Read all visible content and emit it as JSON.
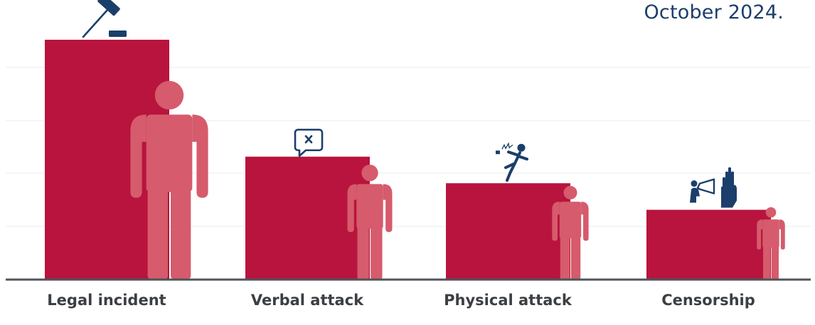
{
  "caption": "October 2024.",
  "colors": {
    "bar": "#b8143d",
    "figure": "#d65b6c",
    "icon": "#1b3e6b",
    "axis": "#4f5559",
    "grid": "#eef0f2",
    "label": "#3b3f43"
  },
  "chart_data": {
    "type": "bar",
    "title": "",
    "xlabel": "",
    "ylabel": "",
    "ylim": [
      0,
      9
    ],
    "grid": true,
    "legend": "none",
    "categories": [
      "Legal incident",
      "Verbal attack",
      "Physical attack",
      "Censorship"
    ],
    "values": [
      9,
      4.6,
      3.6,
      2.6
    ],
    "icons": [
      "gavel-icon",
      "speech-bubble-x-icon",
      "person-kicked-icon",
      "megaphone-hand-icon"
    ]
  }
}
